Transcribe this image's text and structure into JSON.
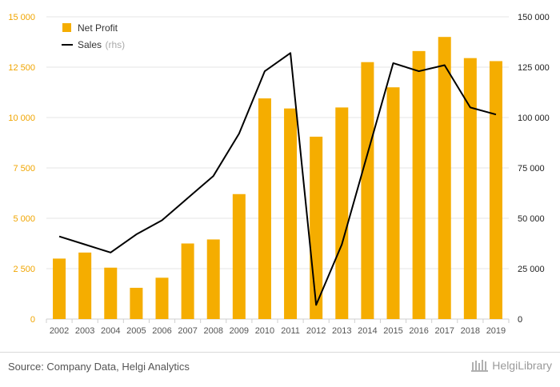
{
  "chart_data": {
    "type": "bar",
    "categories": [
      "2002",
      "2003",
      "2004",
      "2005",
      "2006",
      "2007",
      "2008",
      "2009",
      "2010",
      "2011",
      "2012",
      "2013",
      "2014",
      "2015",
      "2016",
      "2017",
      "2018",
      "2019"
    ],
    "series": [
      {
        "name": "Net Profit",
        "type": "bar",
        "axis": "left",
        "color": "#f5ad00",
        "values": [
          3000,
          3300,
          2550,
          1550,
          2050,
          3750,
          3950,
          6200,
          10950,
          10450,
          9050,
          10500,
          12750,
          11500,
          13300,
          14000,
          12950,
          12800
        ]
      },
      {
        "name": "Sales",
        "name_suffix": "(rhs)",
        "type": "line",
        "axis": "right",
        "color": "#000000",
        "values": [
          41000,
          37000,
          33000,
          42000,
          49000,
          60000,
          71000,
          92000,
          123000,
          132000,
          7000,
          37000,
          82000,
          127000,
          123000,
          126000,
          105000,
          101500
        ]
      }
    ],
    "y_left": {
      "ylim": [
        0,
        15000
      ],
      "ticks": [
        0,
        2500,
        5000,
        7500,
        10000,
        12500,
        15000
      ],
      "tick_labels": [
        "0",
        "2 500",
        "5 000",
        "7 500",
        "10 000",
        "12 500",
        "15 000"
      ],
      "color": "#f0a500"
    },
    "y_right": {
      "ylim": [
        0,
        150000
      ],
      "ticks": [
        0,
        25000,
        50000,
        75000,
        100000,
        125000,
        150000
      ],
      "tick_labels": [
        "0",
        "25 000",
        "50 000",
        "75 000",
        "100 000",
        "125 000",
        "150 000"
      ],
      "color": "#222222"
    },
    "grid": true,
    "legend_position": "top-left"
  },
  "footer": {
    "source": "Source: Company Data, Helgi Analytics",
    "logo_text": "HelgiLibrary"
  }
}
